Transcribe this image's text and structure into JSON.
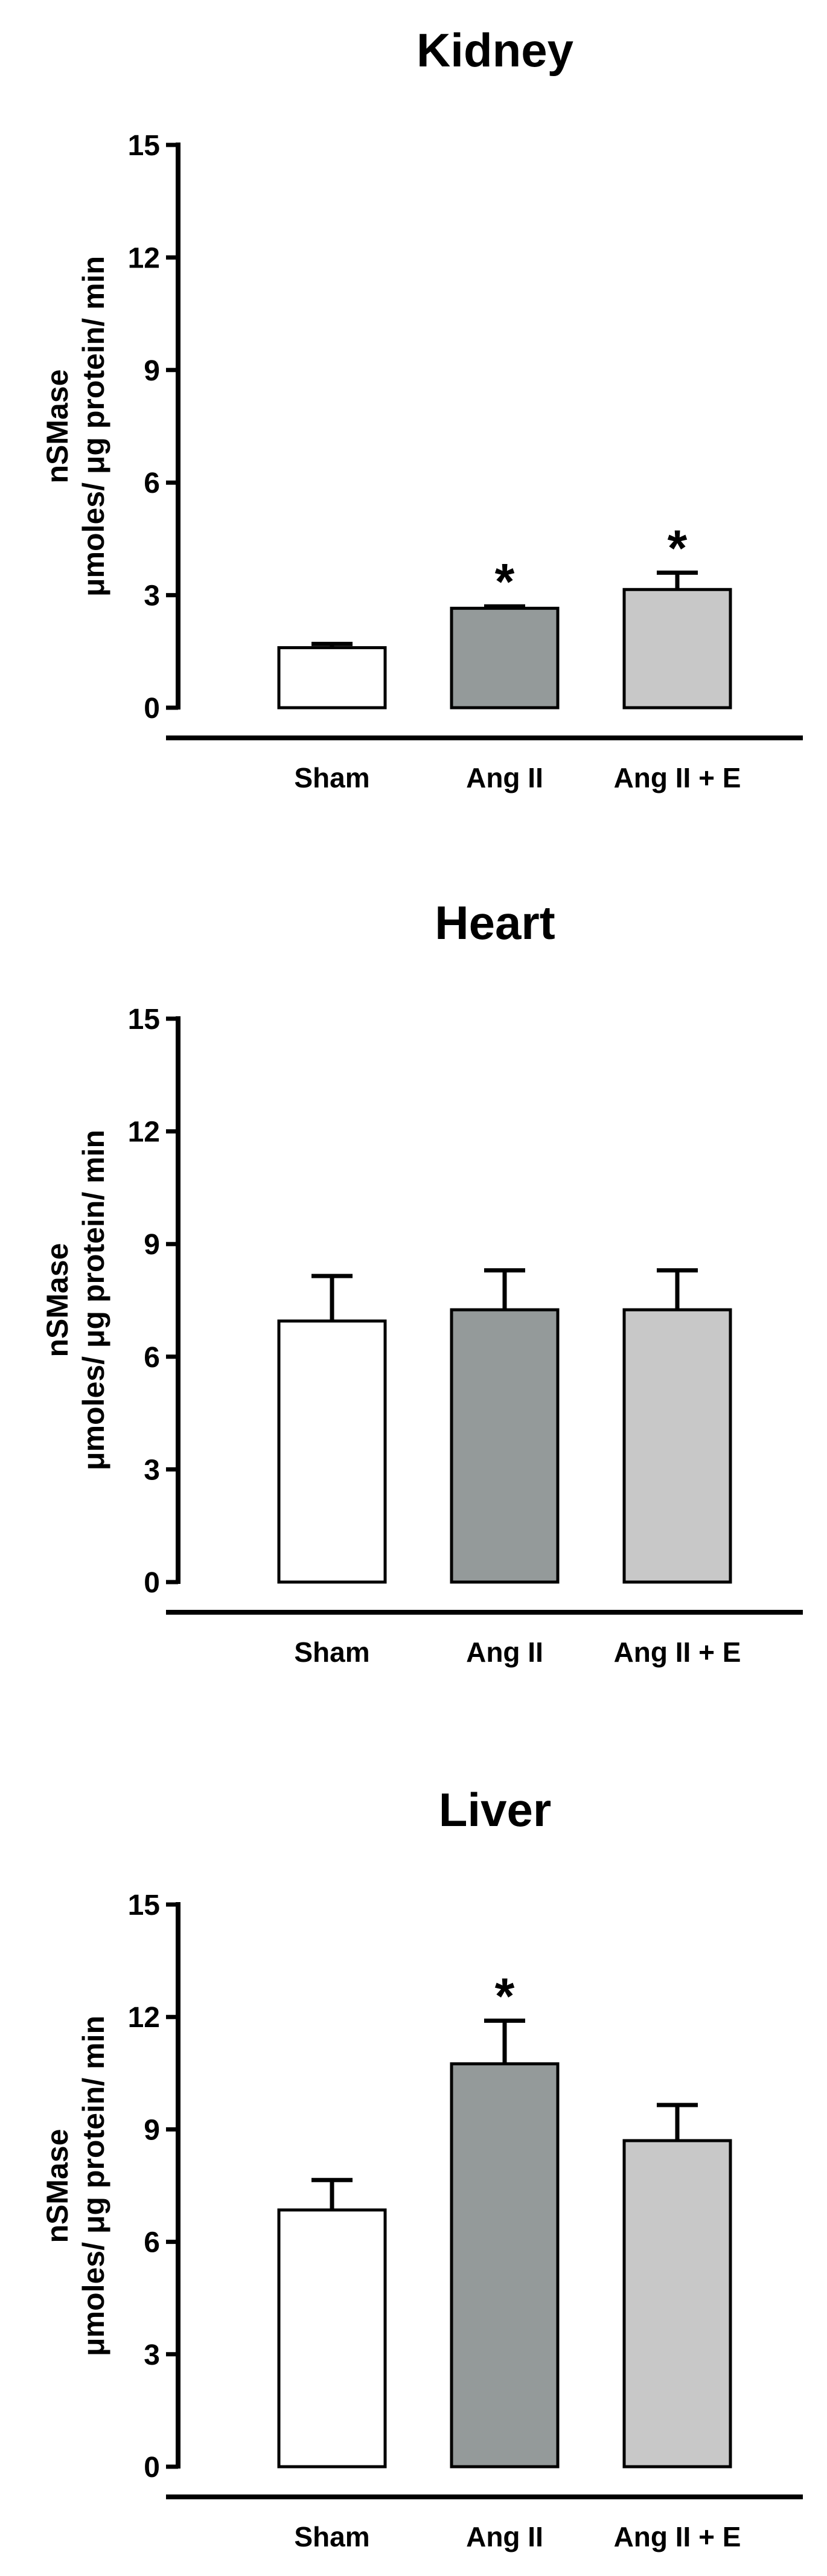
{
  "colors": {
    "sham": "#ffffff",
    "ang_ii": "#949a9a",
    "ang_ii_e": "#c8c8c8",
    "axis": "#000000"
  },
  "chart_data": [
    {
      "type": "bar",
      "title": "Kidney",
      "ylabel_line1": "nSMase",
      "ylabel_line2": "μmoles/ μg protein/ min",
      "xlabel": "",
      "categories": [
        "Sham",
        "Ang II",
        "Ang II + E"
      ],
      "values": [
        1.6,
        2.65,
        3.15
      ],
      "errors": [
        0.1,
        0.05,
        0.45
      ],
      "significant": [
        false,
        true,
        true
      ],
      "marker": "*",
      "ylim": [
        0,
        15
      ],
      "yticks": [
        "0",
        "3",
        "6",
        "9",
        "12",
        "15"
      ],
      "grid": false
    },
    {
      "type": "bar",
      "title": "Heart",
      "ylabel_line1": "nSMase",
      "ylabel_line2": "μmoles/ μg protein/ min",
      "xlabel": "",
      "categories": [
        "Sham",
        "Ang II",
        "Ang II + E"
      ],
      "values": [
        6.95,
        7.25,
        7.25
      ],
      "errors": [
        1.2,
        1.05,
        1.05
      ],
      "significant": [
        false,
        false,
        false
      ],
      "marker": "*",
      "ylim": [
        0,
        15
      ],
      "yticks": [
        "0",
        "3",
        "6",
        "9",
        "12",
        "15"
      ],
      "grid": false
    },
    {
      "type": "bar",
      "title": "Liver",
      "ylabel_line1": "nSMase",
      "ylabel_line2": "μmoles/ μg protein/ min",
      "xlabel": "",
      "categories": [
        "Sham",
        "Ang II",
        "Ang II + E"
      ],
      "values": [
        6.85,
        10.75,
        8.7
      ],
      "errors": [
        0.8,
        1.15,
        0.95
      ],
      "significant": [
        false,
        true,
        false
      ],
      "marker": "*",
      "ylim": [
        0,
        15
      ],
      "yticks": [
        "0",
        "3",
        "6",
        "9",
        "12",
        "15"
      ],
      "grid": false
    }
  ]
}
